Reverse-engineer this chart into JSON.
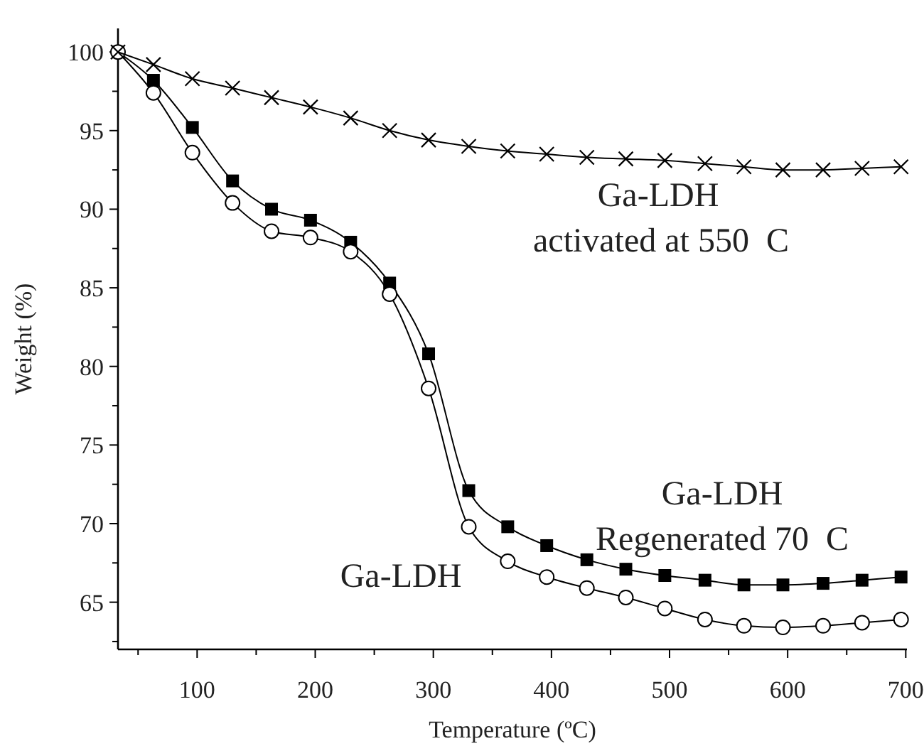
{
  "chart_data": {
    "type": "line",
    "xlabel": "Temperature (ºC)",
    "ylabel": "Weight (%)",
    "x": [
      33,
      63,
      96,
      130,
      163,
      196,
      230,
      263,
      296,
      330,
      363,
      396,
      430,
      463,
      496,
      530,
      563,
      596,
      630,
      663,
      696
    ],
    "series": [
      {
        "color": "#000000",
        "marker": "square",
        "values": [
          100,
          98.2,
          95.2,
          91.8,
          90.0,
          89.3,
          87.9,
          85.3,
          80.8,
          72.1,
          69.8,
          68.6,
          67.7,
          67.1,
          66.7,
          66.4,
          66.1,
          66.1,
          66.2,
          66.4,
          66.6
        ]
      },
      {
        "color": "#000000",
        "marker": "circle",
        "values": [
          100,
          97.4,
          93.6,
          90.4,
          88.6,
          88.2,
          87.3,
          84.6,
          78.6,
          69.8,
          67.6,
          66.6,
          65.9,
          65.3,
          64.6,
          63.9,
          63.5,
          63.4,
          63.5,
          63.7,
          63.9
        ]
      },
      {
        "color": "#000000",
        "marker": "cross",
        "values": [
          100,
          99.2,
          98.3,
          97.7,
          97.1,
          96.5,
          95.8,
          95.0,
          94.4,
          94.0,
          93.7,
          93.5,
          93.3,
          93.2,
          93.1,
          92.9,
          92.7,
          92.5,
          92.5,
          92.6,
          92.7
        ]
      }
    ],
    "xlim": [
      33,
      701
    ],
    "ylim": [
      62,
      101.5
    ],
    "xticks": [
      {
        "value": 50,
        "label": null
      },
      100,
      {
        "value": 150,
        "label": null
      },
      200,
      {
        "value": 250,
        "label": null
      },
      300,
      {
        "value": 350,
        "label": null
      },
      400,
      {
        "value": 450,
        "label": null
      },
      500,
      {
        "value": 550,
        "label": null
      },
      600,
      {
        "value": 650,
        "label": null
      },
      700
    ],
    "yticks": [
      {
        "value": 62.5,
        "label": null
      },
      65,
      {
        "value": 67.5,
        "label": null
      },
      70,
      {
        "value": 72.5,
        "label": null
      },
      75,
      {
        "value": 77.5,
        "label": null
      },
      80,
      {
        "value": 82.5,
        "label": null
      },
      85,
      {
        "value": 87.5,
        "label": null
      },
      90,
      {
        "value": 92.5,
        "label": null
      },
      95,
      {
        "value": 97.5,
        "label": null
      },
      100
    ],
    "grid": false,
    "line_style": "solid",
    "annotations": [
      "Ga-LDH",
      "activated at 550  C",
      "Ga-LDH",
      "Regenerated 70  C",
      "Ga-LDH"
    ]
  }
}
